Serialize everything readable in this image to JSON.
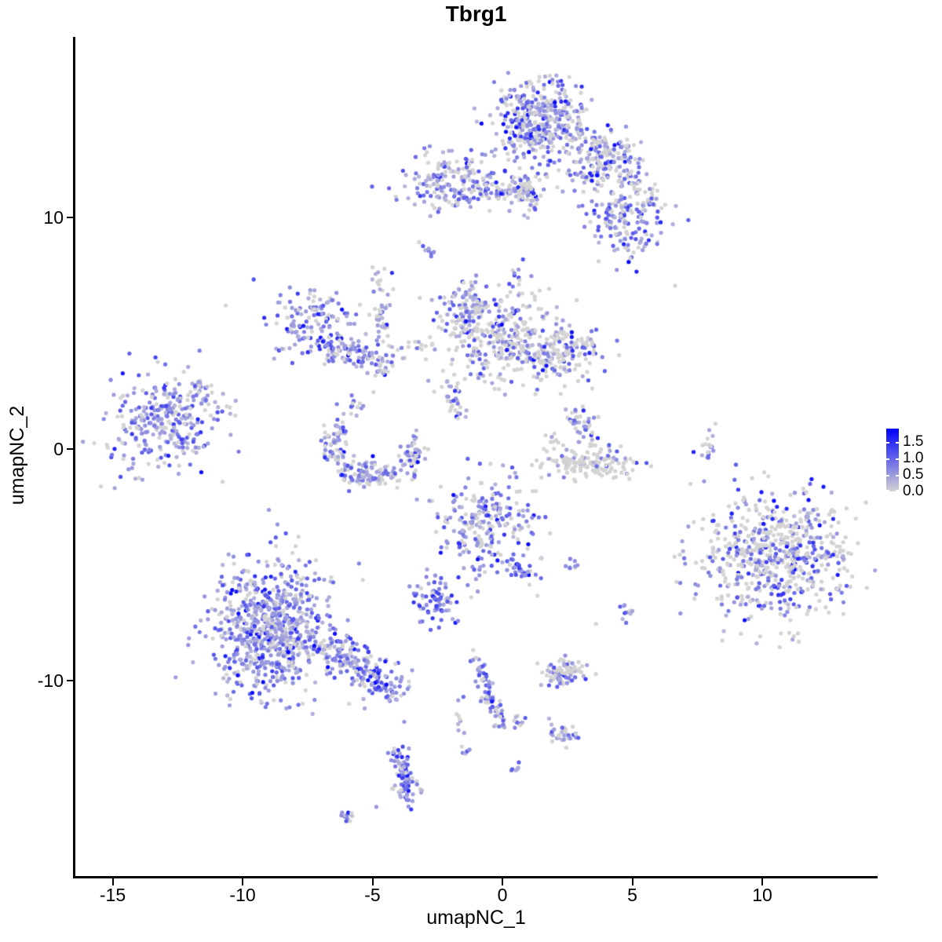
{
  "title": "Tbrg1",
  "axes": {
    "x_label": "umapNC_1",
    "y_label": "umapNC_2",
    "x_ticks": [
      -15,
      -10,
      -5,
      0,
      5,
      10
    ],
    "y_ticks": [
      -10,
      0,
      10
    ],
    "x_range": [
      -16.4,
      14.4
    ],
    "y_range": [
      -18.5,
      17.8
    ]
  },
  "legend": {
    "tick_labels": [
      "1.5",
      "1.0",
      "0.5",
      "0.0"
    ],
    "tick_values": [
      1.5,
      1.0,
      0.5,
      0.0
    ],
    "vmax": 1.9,
    "low_color": "#D3D3D3",
    "high_color": "#0000FF"
  },
  "chart_data": {
    "type": "scatter",
    "title": "Tbrg1",
    "xlabel": "umapNC_1",
    "ylabel": "umapNC_2",
    "point_radius": 2.6,
    "expression_bins": {
      "grey": 0,
      "light": [
        0.24,
        0.64
      ],
      "mid": [
        0.68,
        1.18
      ],
      "high": [
        1.28,
        1.85
      ]
    },
    "clusters": [
      {
        "name": "top-main",
        "kind": "blob",
        "cx": 1.45,
        "cy": 14.2,
        "sx": 0.95,
        "sy": 0.85,
        "n": 400,
        "mix": [
          0.32,
          0.38,
          0.22,
          0.08
        ]
      },
      {
        "name": "top-tail-right",
        "kind": "strand",
        "x1": 2.8,
        "y1": 13.6,
        "x2": 5.1,
        "y2": 12.3,
        "w": 0.4,
        "n": 115,
        "mix": [
          0.5,
          0.3,
          0.16,
          0.04
        ]
      },
      {
        "name": "top-tail-down",
        "kind": "strand",
        "x1": 4.7,
        "y1": 12.0,
        "x2": 5.6,
        "y2": 10.8,
        "w": 0.3,
        "n": 45,
        "mix": [
          0.45,
          0.32,
          0.18,
          0.05
        ]
      },
      {
        "name": "band-blob",
        "kind": "blob",
        "cx": -1.9,
        "cy": 11.5,
        "sx": 1.05,
        "sy": 0.6,
        "n": 190,
        "mix": [
          0.36,
          0.34,
          0.22,
          0.08
        ]
      },
      {
        "name": "band-strand",
        "kind": "strand",
        "x1": -0.5,
        "y1": 11.2,
        "x2": 1.2,
        "y2": 11.1,
        "w": 0.22,
        "n": 40,
        "mix": [
          0.35,
          0.35,
          0.25,
          0.05
        ]
      },
      {
        "name": "band-right-blob",
        "kind": "blob",
        "cx": 0.95,
        "cy": 11.2,
        "sx": 0.42,
        "sy": 0.5,
        "n": 70,
        "mix": [
          0.45,
          0.3,
          0.2,
          0.05
        ]
      },
      {
        "name": "upper-right-blob1",
        "kind": "blob",
        "cx": 3.6,
        "cy": 12.0,
        "sx": 0.5,
        "sy": 0.45,
        "n": 75,
        "mix": [
          0.45,
          0.3,
          0.2,
          0.05
        ]
      },
      {
        "name": "upper-right-blob2",
        "kind": "blob",
        "cx": 4.9,
        "cy": 9.8,
        "sx": 0.7,
        "sy": 0.75,
        "n": 150,
        "mix": [
          0.28,
          0.3,
          0.32,
          0.1
        ]
      },
      {
        "name": "small-diagonal",
        "kind": "strand",
        "x1": -3.05,
        "y1": 8.95,
        "x2": -2.7,
        "y2": 8.35,
        "w": 0.1,
        "n": 10,
        "mix": [
          0.2,
          0.4,
          0.3,
          0.1
        ]
      },
      {
        "name": "vertical-strand",
        "kind": "strand",
        "x1": -4.7,
        "y1": 7.7,
        "x2": -4.55,
        "y2": 3.2,
        "w": 0.17,
        "n": 55,
        "mix": [
          0.5,
          0.28,
          0.17,
          0.05
        ]
      },
      {
        "name": "crescent-apex",
        "kind": "blob",
        "cx": -7.25,
        "cy": 5.3,
        "sx": 0.8,
        "sy": 0.72,
        "n": 150,
        "mix": [
          0.18,
          0.4,
          0.31,
          0.11
        ]
      },
      {
        "name": "crescent-arc",
        "kind": "strand",
        "x1": -6.5,
        "y1": 4.4,
        "x2": -4.5,
        "y2": 3.7,
        "w": 0.3,
        "n": 85,
        "mix": [
          0.3,
          0.37,
          0.25,
          0.08
        ]
      },
      {
        "name": "bridge-dots",
        "kind": "strand",
        "x1": -3.8,
        "y1": 4.2,
        "x2": -2.9,
        "y2": 4.5,
        "w": 0.25,
        "n": 12,
        "mix": [
          0.6,
          0.25,
          0.12,
          0.03
        ]
      },
      {
        "name": "mid-topleft-purple",
        "kind": "blob",
        "cx": -1.35,
        "cy": 6.0,
        "sx": 0.55,
        "sy": 0.6,
        "n": 90,
        "mix": [
          0.25,
          0.35,
          0.3,
          0.1
        ]
      },
      {
        "name": "mid-main-grey",
        "kind": "blob",
        "cx": -0.1,
        "cy": 4.7,
        "sx": 1.25,
        "sy": 1.0,
        "n": 300,
        "mix": [
          0.64,
          0.2,
          0.13,
          0.03
        ]
      },
      {
        "name": "mid-right-lobe",
        "kind": "blob",
        "cx": 2.2,
        "cy": 4.2,
        "sx": 0.85,
        "sy": 0.6,
        "n": 170,
        "mix": [
          0.56,
          0.2,
          0.18,
          0.06
        ]
      },
      {
        "name": "mid-up-dots",
        "kind": "strand",
        "x1": 0.2,
        "y1": 6.5,
        "x2": 0.6,
        "y2": 7.8,
        "w": 0.3,
        "n": 12,
        "mix": [
          0.6,
          0.25,
          0.15,
          0
        ]
      },
      {
        "name": "left-cluster",
        "kind": "blob",
        "cx": -13.2,
        "cy": 1.2,
        "sx": 1.2,
        "sy": 1.05,
        "n": 290,
        "mix": [
          0.22,
          0.44,
          0.27,
          0.07
        ]
      },
      {
        "name": "left-cluster-tail",
        "kind": "strand",
        "x1": -12.1,
        "y1": 2.3,
        "x2": -11.4,
        "y2": 3.0,
        "w": 0.2,
        "n": 20,
        "mix": [
          0.4,
          0.35,
          0.2,
          0.05
        ]
      },
      {
        "name": "horseshoe-left",
        "kind": "strand",
        "x1": -6.35,
        "y1": 1.0,
        "x2": -6.55,
        "y2": -0.4,
        "w": 0.27,
        "n": 60,
        "mix": [
          0.3,
          0.4,
          0.25,
          0.05
        ]
      },
      {
        "name": "horseshoe-bottom",
        "kind": "strand",
        "x1": -6.1,
        "y1": -1.05,
        "x2": -4.2,
        "y2": -1.2,
        "w": 0.3,
        "n": 110,
        "mix": [
          0.35,
          0.37,
          0.23,
          0.05
        ]
      },
      {
        "name": "horseshoe-right",
        "kind": "strand",
        "x1": -3.65,
        "y1": -0.9,
        "x2": -3.3,
        "y2": 0.35,
        "w": 0.22,
        "n": 45,
        "mix": [
          0.4,
          0.35,
          0.2,
          0.05
        ]
      },
      {
        "name": "horseshoe-upper-dots",
        "kind": "strand",
        "x1": -5.9,
        "y1": 1.6,
        "x2": -5.2,
        "y2": 2.2,
        "w": 0.3,
        "n": 14,
        "mix": [
          0.5,
          0.3,
          0.2,
          0
        ]
      },
      {
        "name": "upper-strand",
        "kind": "strand",
        "x1": -2.1,
        "y1": 2.75,
        "x2": -1.6,
        "y2": 1.5,
        "w": 0.18,
        "n": 28,
        "mix": [
          0.35,
          0.35,
          0.25,
          0.05
        ]
      },
      {
        "name": "smile-upper-strand",
        "kind": "strand",
        "x1": 2.85,
        "y1": 1.55,
        "x2": 3.45,
        "y2": 0.5,
        "w": 0.25,
        "n": 42,
        "mix": [
          0.42,
          0.3,
          0.23,
          0.05
        ]
      },
      {
        "name": "smile-arc",
        "kind": "blob",
        "cx": 3.35,
        "cy": -0.62,
        "sx": 1.0,
        "sy": 0.33,
        "n": 145,
        "mix": [
          0.8,
          0.1,
          0.08,
          0.02
        ]
      },
      {
        "name": "smile-left-dots",
        "kind": "strand",
        "x1": 1.75,
        "y1": 0.7,
        "x2": 2.2,
        "y2": 0.2,
        "w": 0.15,
        "n": 10,
        "mix": [
          0.8,
          0.2,
          0,
          0
        ]
      },
      {
        "name": "right-strand",
        "kind": "strand",
        "x1": 7.9,
        "y1": 0.95,
        "x2": 7.95,
        "y2": -0.5,
        "w": 0.1,
        "n": 16,
        "mix": [
          0.3,
          0.3,
          0.35,
          0.05
        ]
      },
      {
        "name": "center-cluster",
        "kind": "blob",
        "cx": -0.6,
        "cy": -3.3,
        "sx": 0.95,
        "sy": 1.05,
        "n": 235,
        "mix": [
          0.3,
          0.36,
          0.26,
          0.08
        ]
      },
      {
        "name": "center-tail",
        "kind": "strand",
        "x1": 0.3,
        "y1": -4.7,
        "x2": 1.1,
        "y2": -5.55,
        "w": 0.18,
        "n": 30,
        "mix": [
          0.25,
          0.3,
          0.33,
          0.12
        ]
      },
      {
        "name": "pair-right-of-center",
        "kind": "blob",
        "cx": 2.75,
        "cy": -4.95,
        "sx": 0.18,
        "sy": 0.15,
        "n": 8,
        "mix": [
          0.2,
          0.4,
          0.3,
          0.1
        ]
      },
      {
        "name": "small-dense-purple",
        "kind": "blob",
        "cx": -2.5,
        "cy": -6.6,
        "sx": 0.42,
        "sy": 0.55,
        "n": 75,
        "mix": [
          0.15,
          0.3,
          0.35,
          0.2
        ]
      },
      {
        "name": "bottomleft-main",
        "kind": "blob",
        "cx": -8.8,
        "cy": -7.7,
        "sx": 1.15,
        "sy": 1.45,
        "n": 760,
        "mix": [
          0.25,
          0.42,
          0.26,
          0.07
        ]
      },
      {
        "name": "bottomleft-tail",
        "kind": "strand",
        "x1": -6.6,
        "y1": -8.6,
        "x2": -4.05,
        "y2": -10.45,
        "w": 0.42,
        "n": 195,
        "mix": [
          0.2,
          0.4,
          0.3,
          0.1
        ]
      },
      {
        "name": "right-big",
        "kind": "blob",
        "cx": 10.4,
        "cy": -4.6,
        "sx": 1.45,
        "sy": 1.4,
        "n": 630,
        "mix": [
          0.52,
          0.2,
          0.2,
          0.08
        ]
      },
      {
        "name": "small-grey-blob",
        "kind": "blob",
        "cx": 2.3,
        "cy": -9.65,
        "sx": 0.5,
        "sy": 0.27,
        "n": 85,
        "mix": [
          0.55,
          0.28,
          0.14,
          0.03
        ]
      },
      {
        "name": "small-pair",
        "kind": "blob",
        "cx": 4.85,
        "cy": -7.05,
        "sx": 0.2,
        "sy": 0.18,
        "n": 11,
        "mix": [
          0.2,
          0.4,
          0.3,
          0.1
        ]
      },
      {
        "name": "diagonal-strand",
        "kind": "strand",
        "x1": -1.1,
        "y1": -9.1,
        "x2": 0.1,
        "y2": -12.05,
        "w": 0.18,
        "n": 75,
        "mix": [
          0.25,
          0.35,
          0.3,
          0.1
        ]
      },
      {
        "name": "diagonal-side",
        "kind": "blob",
        "cx": 0.6,
        "cy": -11.75,
        "sx": 0.15,
        "sy": 0.12,
        "n": 8,
        "mix": [
          0.3,
          0.4,
          0.3,
          0
        ]
      },
      {
        "name": "bottom-blob",
        "kind": "blob",
        "cx": 2.3,
        "cy": -12.4,
        "sx": 0.33,
        "sy": 0.28,
        "n": 30,
        "mix": [
          0.3,
          0.4,
          0.25,
          0.05
        ]
      },
      {
        "name": "bottom-pair",
        "kind": "blob",
        "cx": 0.55,
        "cy": -13.85,
        "sx": 0.14,
        "sy": 0.12,
        "n": 6,
        "mix": [
          0.1,
          0.4,
          0.4,
          0.1
        ]
      },
      {
        "name": "bottom-strand-left",
        "kind": "strand",
        "x1": -1.75,
        "y1": -11.55,
        "x2": -1.45,
        "y2": -13.2,
        "w": 0.1,
        "n": 12,
        "mix": [
          0.3,
          0.4,
          0.25,
          0.05
        ]
      },
      {
        "name": "bottom-cluster",
        "kind": "strand",
        "x1": -4.0,
        "y1": -13.0,
        "x2": -3.5,
        "y2": -15.3,
        "w": 0.22,
        "n": 95,
        "mix": [
          0.15,
          0.38,
          0.3,
          0.17
        ]
      },
      {
        "name": "tiny-bottom",
        "kind": "blob",
        "cx": -5.9,
        "cy": -15.8,
        "sx": 0.22,
        "sy": 0.18,
        "n": 14,
        "mix": [
          0.3,
          0.4,
          0.25,
          0.05
        ]
      }
    ],
    "singles": [
      [
        -10.65,
        6.2,
        0
      ],
      [
        6.65,
        7.05,
        0
      ],
      [
        -2.85,
        2.95,
        0.45
      ],
      [
        3.6,
        -7.55,
        0
      ],
      [
        -1.7,
        -10.85,
        0.5
      ],
      [
        -1.5,
        -10.7,
        0.9
      ],
      [
        -4.85,
        -15.45,
        0.55
      ],
      [
        -2.95,
        4.45,
        0
      ],
      [
        -2.6,
        4.3,
        0.5
      ],
      [
        -0.3,
        2.6,
        0
      ],
      [
        0.1,
        2.35,
        0.4
      ],
      [
        -5.3,
        -11.2,
        0.4
      ],
      [
        -5.9,
        -11.0,
        0
      ],
      [
        -2.9,
        -5.2,
        0.4
      ],
      [
        -2.6,
        -5.45,
        0
      ],
      [
        -1.2,
        -6.4,
        0
      ],
      [
        -0.95,
        -6.15,
        0.5
      ],
      [
        2.5,
        11.9,
        0
      ],
      [
        2.7,
        11.6,
        0.4
      ],
      [
        13.6,
        -3.0,
        0
      ],
      [
        8.2,
        1.1,
        0
      ],
      [
        11.9,
        -1.3,
        1.7
      ]
    ]
  }
}
